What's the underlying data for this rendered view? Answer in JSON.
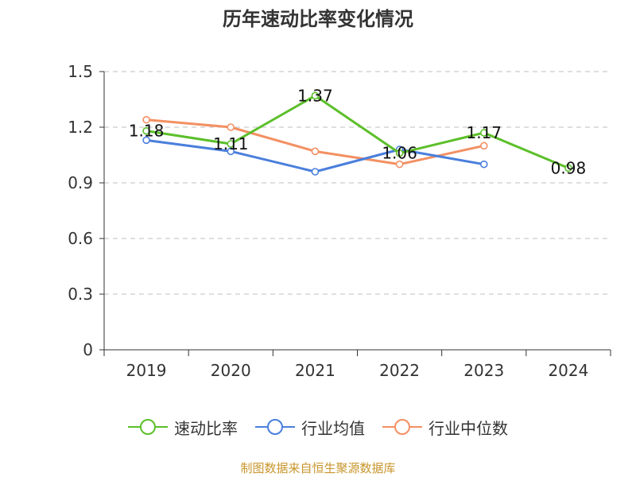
{
  "title": "历年速动比率变化情况",
  "footer": "制图数据来自恒生聚源数据库",
  "chart_data": {
    "type": "line",
    "title": "历年速动比率变化情况",
    "xlabel": "",
    "ylabel": "",
    "categories": [
      "2019",
      "2020",
      "2021",
      "2022",
      "2023",
      "2024"
    ],
    "ylim": [
      0,
      1.5
    ],
    "yticks": [
      0,
      0.3,
      0.6,
      0.9,
      1.2,
      1.5
    ],
    "ytick_labels": [
      "0",
      "0.3",
      "0.6",
      "0.9",
      "1.2",
      "1.5"
    ],
    "grid": "horizontal-dashed",
    "legend_position": "bottom",
    "series": [
      {
        "name": "速动比率",
        "color": "#5cbf2a",
        "values": [
          1.18,
          1.11,
          1.37,
          1.06,
          1.17,
          0.98
        ],
        "labels": [
          "1.18",
          "1.11",
          "1.37",
          "1.06",
          "1.17",
          "0.98"
        ]
      },
      {
        "name": "行业均值",
        "color": "#4a7fdc",
        "values": [
          1.13,
          1.07,
          0.96,
          1.08,
          1.0,
          null
        ]
      },
      {
        "name": "行业中位数",
        "color": "#f39062",
        "values": [
          1.24,
          1.2,
          1.07,
          1.0,
          1.1,
          null
        ]
      }
    ]
  }
}
